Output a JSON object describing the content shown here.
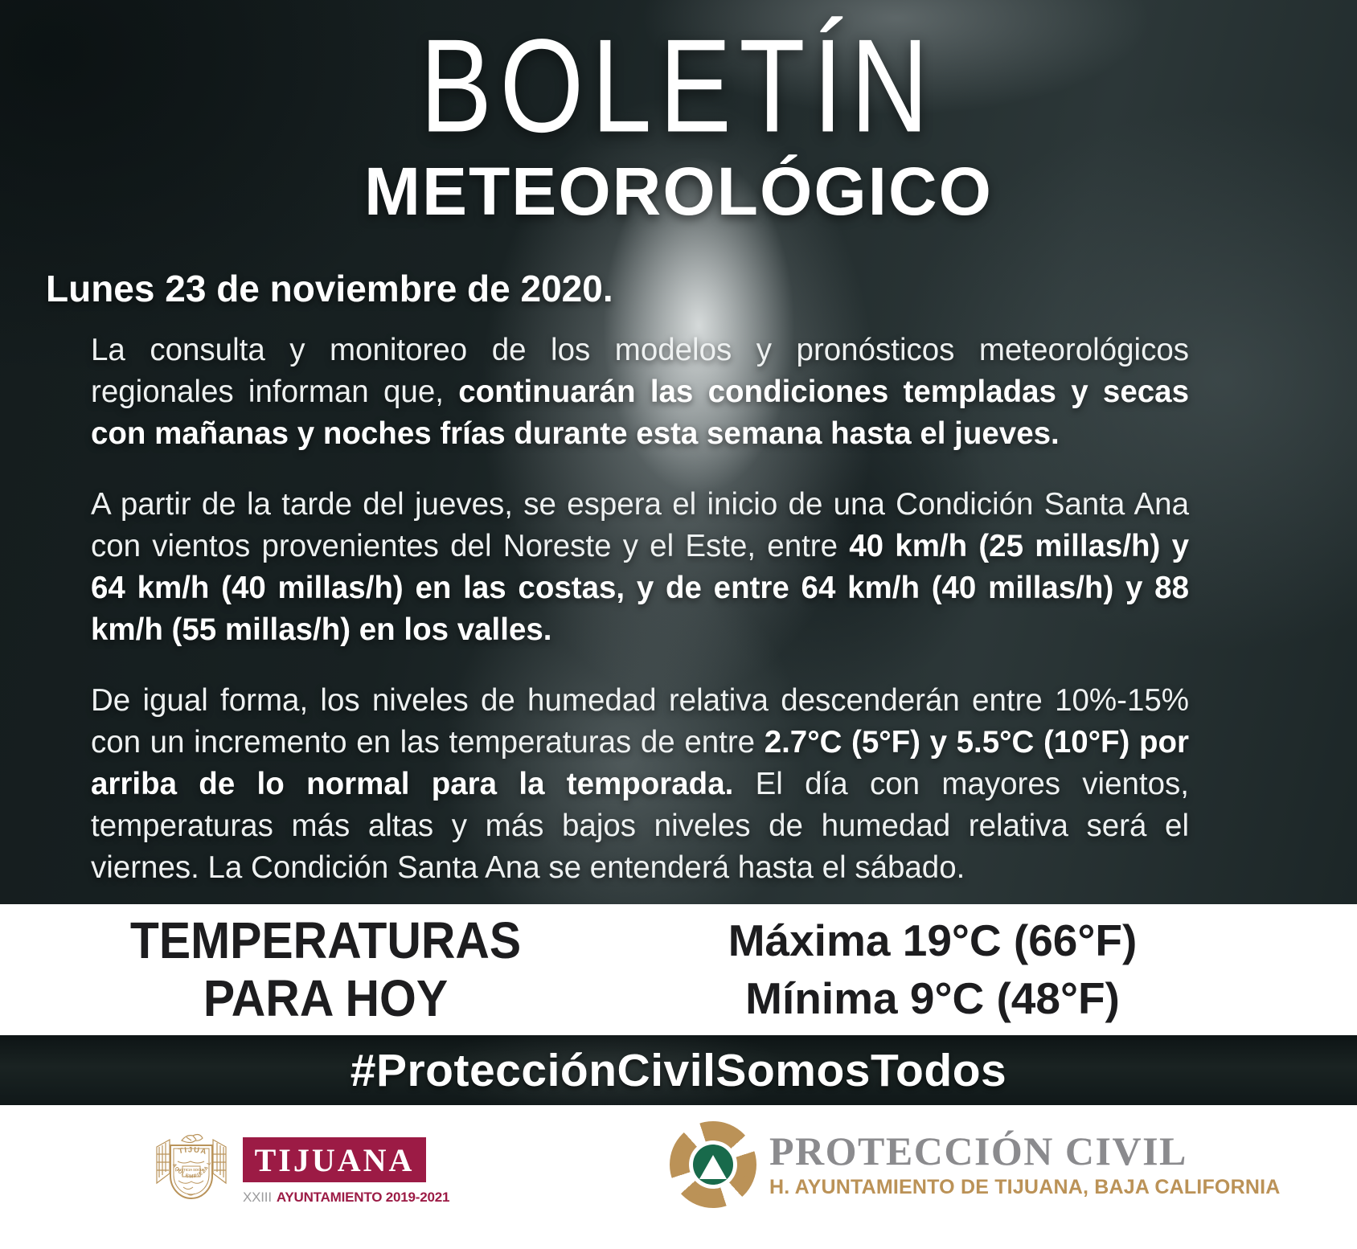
{
  "title": {
    "line1": "BOLETÍN",
    "line2": "METEOROLÓGICO"
  },
  "date": "Lunes 23 de noviembre de 2020.",
  "paragraphs": [
    {
      "segments": [
        {
          "text": "La consulta y monitoreo de los modelos y pronósticos meteorológicos regionales informan que, ",
          "bold": false
        },
        {
          "text": "continuarán las condiciones templadas y secas con mañanas y noches frías durante esta semana hasta el jueves.",
          "bold": true
        }
      ]
    },
    {
      "segments": [
        {
          "text": "A partir de la tarde del jueves, se espera el inicio de una Condición Santa Ana con vientos provenientes del Noreste y el Este, entre ",
          "bold": false
        },
        {
          "text": "40 km/h (25 millas/h) y 64 km/h (40 millas/h) en las costas, y de entre 64 km/h (40 millas/h) y 88 km/h (55 millas/h) en los valles.",
          "bold": true
        }
      ]
    },
    {
      "segments": [
        {
          "text": "De igual forma, los niveles de humedad relativa descenderán entre 10%-15% con un incremento en las temperaturas de entre ",
          "bold": false
        },
        {
          "text": "2.7°C (5°F) y 5.5°C (10°F) por arriba de lo normal para la temporada.",
          "bold": true
        },
        {
          "text": " El día con mayores vientos, temperaturas más altas y más bajos niveles de humedad relativa será el viernes. La Condición Santa Ana se entenderá hasta el sábado.",
          "bold": false
        }
      ]
    }
  ],
  "temperatures": {
    "heading_line1": "TEMPERATURAS",
    "heading_line2": "PARA HOY",
    "max_label": "Máxima ",
    "max_value": "19°C (66°F)",
    "min_label": "Mínima ",
    "min_value": "9°C (48°F)"
  },
  "hashtag": "#ProtecciónCivilSomosTodos",
  "footer": {
    "tijuana": {
      "crest_banner": "TIJUANA",
      "crest_motto": "AQUÍ EMPIEZA LA PATRIA",
      "crest_center": "JUSTICIA SOCIAL",
      "name": "TIJUANA",
      "sub_prefix": "XXIII",
      "sub_rest": "AYUNTAMIENTO 2019-2021"
    },
    "proteccion_civil": {
      "name": "PROTECCIÓN CIVIL",
      "sub": "H. AYUNTAMIENTO DE TIJUANA, BAJA CALIFORNIA"
    }
  },
  "colors": {
    "maroon": "#9c1b45",
    "gold": "#bb9257",
    "green": "#186a4b",
    "pc_gray": "#8b8b8e",
    "xxiii_gray": "#9b9b9d"
  },
  "icons": {
    "tijuana_crest": "tijuana-coat-of-arms",
    "pc_emblem": "proteccion-civil-triangle-emblem"
  }
}
